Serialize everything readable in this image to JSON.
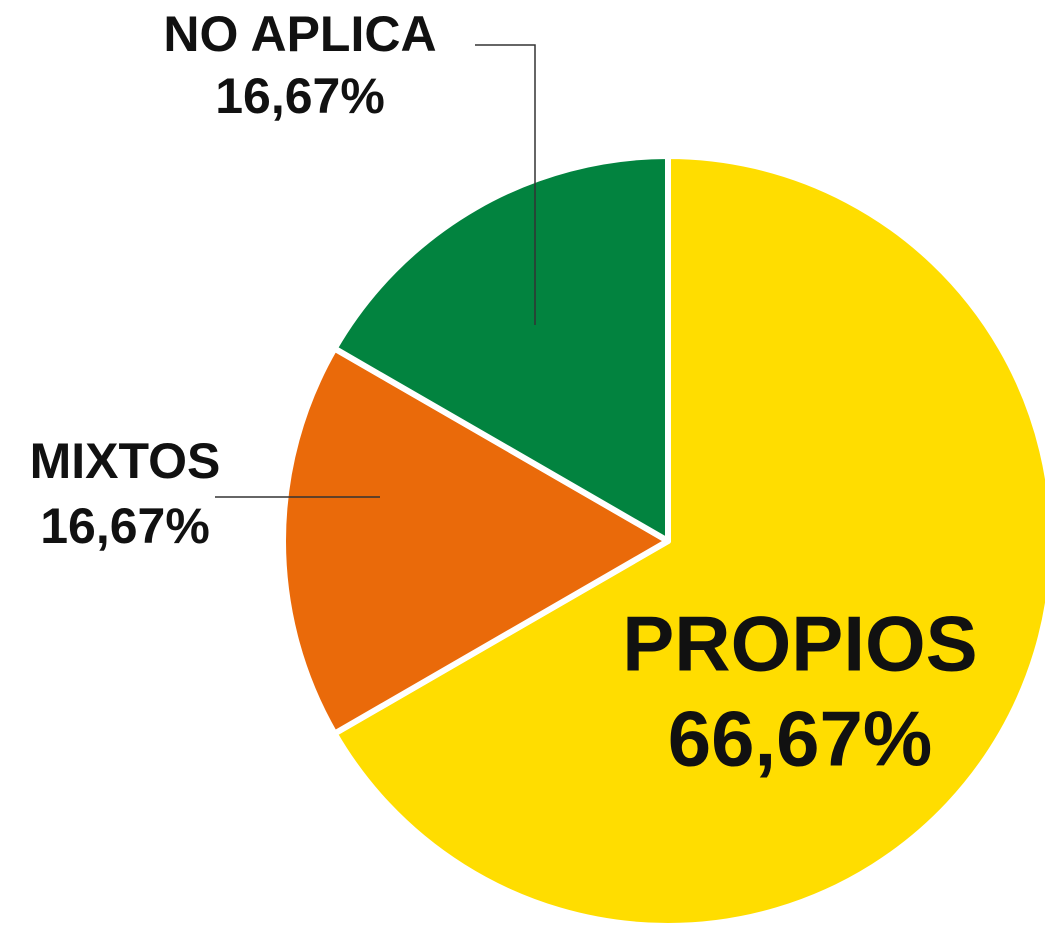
{
  "chart_data": {
    "type": "pie",
    "categories": [
      "PROPIOS",
      "MIXTOS",
      "NO APLICA"
    ],
    "values": [
      66.67,
      16.67,
      16.67
    ],
    "value_labels": [
      "66,67%",
      "16,67%",
      "16,67%"
    ],
    "colors": [
      "#FFDD00",
      "#EA6A0A",
      "#02833F"
    ]
  }
}
